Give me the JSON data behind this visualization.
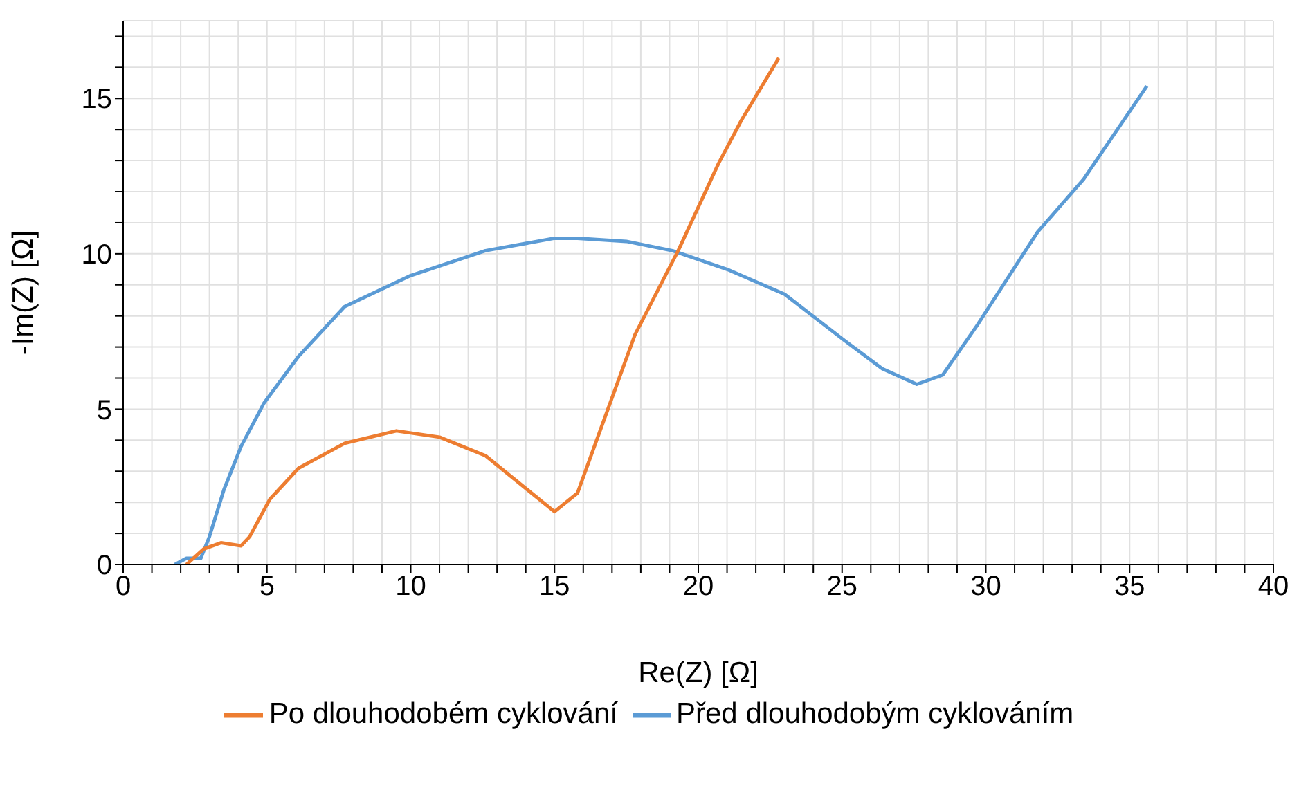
{
  "chart_data": {
    "type": "line",
    "xlabel": "Re(Z) [Ω]",
    "ylabel": "-Im(Z) [Ω]",
    "xlim": [
      0,
      40
    ],
    "ylim": [
      0,
      17.5
    ],
    "xticks": [
      0,
      {
        "value": 1,
        "label": null
      },
      {
        "value": 2,
        "label": null
      },
      {
        "value": 3,
        "label": null
      },
      {
        "value": 4,
        "label": null
      },
      5,
      {
        "value": 6,
        "label": null
      },
      {
        "value": 7,
        "label": null
      },
      {
        "value": 8,
        "label": null
      },
      {
        "value": 9,
        "label": null
      },
      10,
      {
        "value": 11,
        "label": null
      },
      {
        "value": 12,
        "label": null
      },
      {
        "value": 13,
        "label": null
      },
      {
        "value": 14,
        "label": null
      },
      15,
      {
        "value": 16,
        "label": null
      },
      {
        "value": 17,
        "label": null
      },
      {
        "value": 18,
        "label": null
      },
      {
        "value": 19,
        "label": null
      },
      20,
      {
        "value": 21,
        "label": null
      },
      {
        "value": 22,
        "label": null
      },
      {
        "value": 23,
        "label": null
      },
      {
        "value": 24,
        "label": null
      },
      25,
      {
        "value": 26,
        "label": null
      },
      {
        "value": 27,
        "label": null
      },
      {
        "value": 28,
        "label": null
      },
      {
        "value": 29,
        "label": null
      },
      30,
      {
        "value": 31,
        "label": null
      },
      {
        "value": 32,
        "label": null
      },
      {
        "value": 33,
        "label": null
      },
      {
        "value": 34,
        "label": null
      },
      35,
      {
        "value": 36,
        "label": null
      },
      {
        "value": 37,
        "label": null
      },
      {
        "value": 38,
        "label": null
      },
      {
        "value": 39,
        "label": null
      },
      40
    ],
    "yticks": [
      0,
      {
        "value": 1,
        "label": null
      },
      {
        "value": 2,
        "label": null
      },
      {
        "value": 3,
        "label": null
      },
      {
        "value": 4,
        "label": null
      },
      5,
      {
        "value": 6,
        "label": null
      },
      {
        "value": 7,
        "label": null
      },
      {
        "value": 8,
        "label": null
      },
      {
        "value": 9,
        "label": null
      },
      10,
      {
        "value": 11,
        "label": null
      },
      {
        "value": 12,
        "label": null
      },
      {
        "value": 13,
        "label": null
      },
      {
        "value": 14,
        "label": null
      },
      15,
      {
        "value": 16,
        "label": null
      },
      {
        "value": 17,
        "label": null
      }
    ],
    "grid": true,
    "legend": "bottom",
    "marker": "none",
    "line_style": "solid",
    "series": [
      {
        "name": "Před dlouhodobým cyklováním",
        "color": "#5b9bd5",
        "x": [
          1.8,
          2.2,
          2.7,
          3.0,
          3.5,
          4.1,
          4.9,
          6.1,
          7.7,
          10.0,
          12.6,
          15.0,
          15.8,
          17.5,
          19.1,
          21.0,
          23.0,
          25.1,
          26.4,
          27.6,
          28.5,
          29.7,
          31.8,
          33.4,
          35.6
        ],
        "values": [
          0,
          0.2,
          0.2,
          0.9,
          2.4,
          3.8,
          5.2,
          6.7,
          8.3,
          9.3,
          10.1,
          10.5,
          10.5,
          10.4,
          10.1,
          9.5,
          8.7,
          7.2,
          6.3,
          5.8,
          6.1,
          7.7,
          10.7,
          12.4,
          15.4
        ]
      },
      {
        "name": "Po dlouhodobém cyklování",
        "color": "#ed7d31",
        "x": [
          2.2,
          2.8,
          3.4,
          4.1,
          4.4,
          5.1,
          6.1,
          7.7,
          9.5,
          11.0,
          12.6,
          14.2,
          15.0,
          15.8,
          16.7,
          17.8,
          19.3,
          20.7,
          21.5,
          22.8
        ],
        "values": [
          0,
          0.5,
          0.7,
          0.6,
          0.9,
          2.1,
          3.1,
          3.9,
          4.3,
          4.1,
          3.5,
          2.3,
          1.7,
          2.3,
          4.6,
          7.4,
          10.1,
          12.9,
          14.3,
          16.3
        ]
      }
    ]
  }
}
